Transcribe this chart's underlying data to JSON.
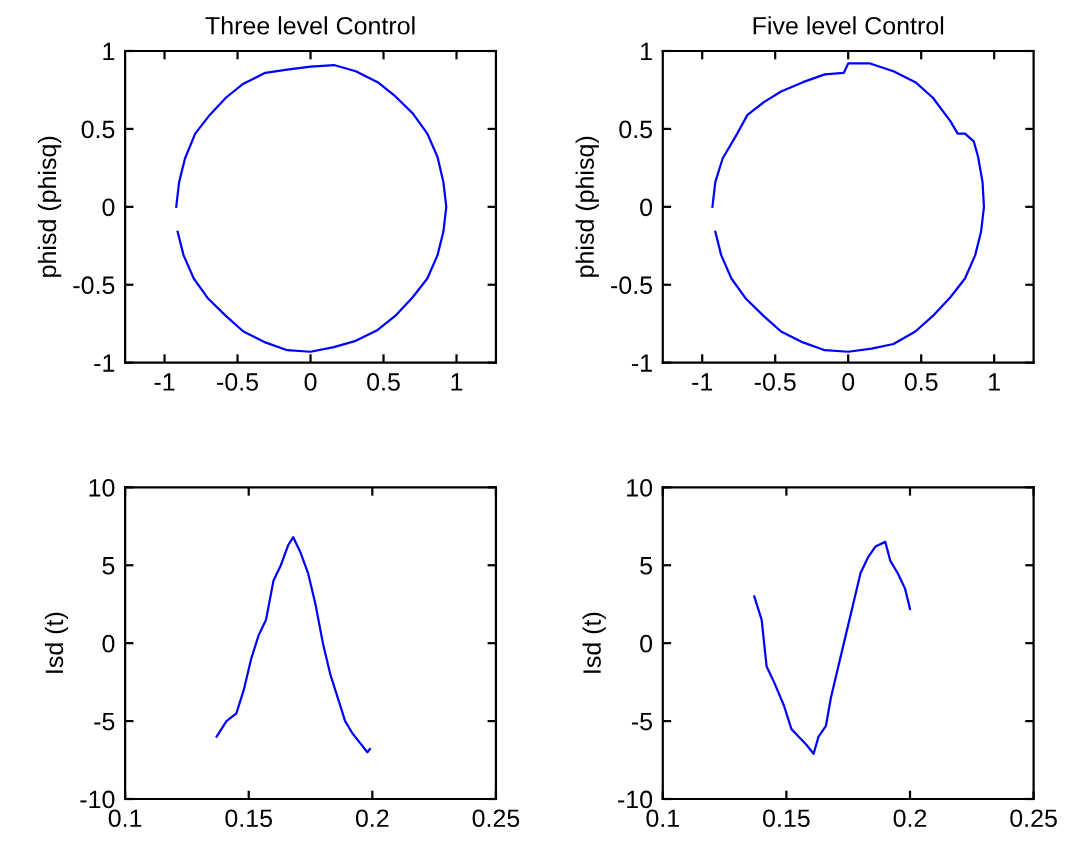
{
  "chart_data": [
    {
      "type": "line",
      "title": "Three level Control",
      "ylabel": "phisd (phisq)",
      "xlim": [
        -1.27,
        1.27
      ],
      "ylim": [
        -1,
        1
      ],
      "xticks": [
        -1,
        -0.5,
        0,
        0.5,
        1
      ],
      "yticks": [
        -1,
        -0.5,
        0,
        0.5,
        1
      ],
      "grid": false,
      "marker": "none",
      "line_style": "solid",
      "series": [
        {
          "color": "#0000ff",
          "x": [
            -0.92,
            -0.9,
            -0.86,
            -0.79,
            -0.69,
            -0.58,
            -0.46,
            -0.31,
            -0.16,
            0.0,
            0.16,
            0.31,
            0.46,
            0.58,
            0.7,
            0.8,
            0.87,
            0.91,
            0.93,
            0.91,
            0.87,
            0.8,
            0.7,
            0.58,
            0.46,
            0.31,
            0.16,
            0.0,
            -0.16,
            -0.31,
            -0.46,
            -0.58,
            -0.7,
            -0.8,
            -0.87,
            -0.91
          ],
          "values": [
            0.0,
            0.16,
            0.31,
            0.47,
            0.59,
            0.7,
            0.79,
            0.86,
            0.88,
            0.9,
            0.91,
            0.87,
            0.8,
            0.71,
            0.6,
            0.47,
            0.32,
            0.16,
            0.0,
            -0.16,
            -0.31,
            -0.46,
            -0.58,
            -0.7,
            -0.79,
            -0.86,
            -0.9,
            -0.93,
            -0.92,
            -0.87,
            -0.8,
            -0.7,
            -0.59,
            -0.46,
            -0.31,
            -0.16
          ]
        }
      ]
    },
    {
      "type": "line",
      "title": "Five level Control",
      "ylabel": "phisd (phisq)",
      "xlim": [
        -1.27,
        1.27
      ],
      "ylim": [
        -1,
        1
      ],
      "xticks": [
        -1,
        -0.5,
        0,
        0.5,
        1
      ],
      "yticks": [
        -1,
        -0.5,
        0,
        0.5,
        1
      ],
      "grid": false,
      "marker": "none",
      "line_style": "solid",
      "series": [
        {
          "color": "#0000ff",
          "x": [
            -0.93,
            -0.91,
            -0.86,
            -0.76,
            -0.69,
            -0.58,
            -0.46,
            -0.31,
            -0.16,
            -0.03,
            0.0,
            0.15,
            0.31,
            0.46,
            0.58,
            0.7,
            0.75,
            0.8,
            0.86,
            0.89,
            0.92,
            0.93,
            0.91,
            0.87,
            0.8,
            0.7,
            0.58,
            0.46,
            0.31,
            0.16,
            0.0,
            -0.16,
            -0.31,
            -0.46,
            -0.58,
            -0.7,
            -0.8,
            -0.87,
            -0.91
          ],
          "values": [
            0.0,
            0.16,
            0.31,
            0.47,
            0.59,
            0.67,
            0.74,
            0.8,
            0.85,
            0.86,
            0.92,
            0.92,
            0.87,
            0.8,
            0.7,
            0.55,
            0.47,
            0.47,
            0.42,
            0.32,
            0.16,
            0.0,
            -0.16,
            -0.31,
            -0.46,
            -0.58,
            -0.7,
            -0.8,
            -0.88,
            -0.91,
            -0.93,
            -0.92,
            -0.87,
            -0.8,
            -0.7,
            -0.59,
            -0.46,
            -0.31,
            -0.16
          ]
        }
      ]
    },
    {
      "type": "line",
      "ylabel": "Isd (t)",
      "xlim": [
        0.1,
        0.25
      ],
      "ylim": [
        -10,
        10
      ],
      "xticks": [
        0.1,
        0.15,
        0.2,
        0.25
      ],
      "yticks": [
        -10,
        -5,
        0,
        5,
        10
      ],
      "grid": false,
      "marker": "none",
      "line_style": "solid",
      "series": [
        {
          "color": "#0000ff",
          "x": [
            0.137,
            0.141,
            0.145,
            0.148,
            0.151,
            0.154,
            0.157,
            0.16,
            0.163,
            0.166,
            0.168,
            0.171,
            0.174,
            0.177,
            0.18,
            0.183,
            0.186,
            0.189,
            0.192,
            0.195,
            0.198,
            0.199
          ],
          "values": [
            -6,
            -5,
            -4.5,
            -3,
            -1,
            0.5,
            1.5,
            4,
            5,
            6.3,
            6.8,
            5.8,
            4.5,
            2.5,
            0,
            -2,
            -3.5,
            -5,
            -5.8,
            -6.4,
            -7,
            -6.8
          ]
        }
      ]
    },
    {
      "type": "line",
      "ylabel": "Isd (t)",
      "xlim": [
        0.1,
        0.25
      ],
      "ylim": [
        -10,
        10
      ],
      "xticks": [
        0.1,
        0.15,
        0.2,
        0.25
      ],
      "yticks": [
        -10,
        -5,
        0,
        5,
        10
      ],
      "grid": false,
      "marker": "none",
      "line_style": "solid",
      "series": [
        {
          "color": "#0000ff",
          "x": [
            0.137,
            0.14,
            0.142,
            0.145,
            0.149,
            0.152,
            0.155,
            0.158,
            0.161,
            0.163,
            0.166,
            0.168,
            0.171,
            0.174,
            0.177,
            0.18,
            0.183,
            0.186,
            0.19,
            0.192,
            0.195,
            0.198,
            0.2
          ],
          "values": [
            3,
            1.5,
            -1.5,
            -2.5,
            -4,
            -5.5,
            -6,
            -6.5,
            -7.1,
            -6,
            -5.3,
            -3.5,
            -1.5,
            0.5,
            2.5,
            4.5,
            5.5,
            6.2,
            6.5,
            5.3,
            4.5,
            3.5,
            2.2
          ]
        }
      ]
    }
  ]
}
